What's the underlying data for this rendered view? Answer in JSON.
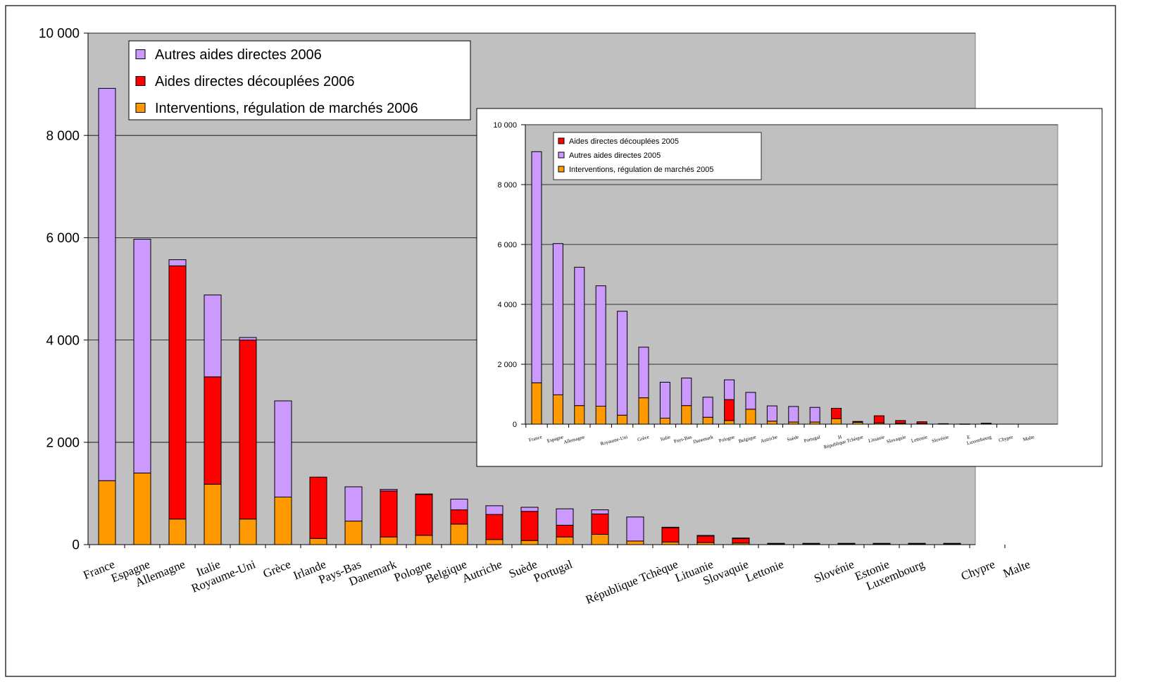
{
  "colors": {
    "autres": "#cc99ff",
    "decouplees": "#ff0000",
    "interventions": "#ff9900",
    "plot_bg": "#c0c0c0",
    "frame": "#000000"
  },
  "chart_data": [
    {
      "type": "bar",
      "stacked": true,
      "title": "",
      "xlabel": "",
      "ylabel": "",
      "ylim": [
        0,
        10000
      ],
      "yticks": [
        "0",
        "2 000",
        "4 000",
        "6 000",
        "8 000",
        "10 000"
      ],
      "grid": true,
      "legend_position": "top-left",
      "categories": [
        "France",
        "Espagne",
        "Allemagne",
        "Italie",
        "Royaume-Uni",
        "Grèce",
        "Irlande",
        "Pays-Bas",
        "Danemark",
        "Pologne",
        "Belgique",
        "Autriche",
        "Suède",
        "Portugal",
        "",
        "",
        "République Tchèque",
        "Lituanie",
        "Slovaquie",
        "Lettonie",
        "",
        "Slovénie",
        "Estonie",
        "Luxembourg",
        "",
        "Chypre",
        "Malte"
      ],
      "category_labels": [
        "France",
        "Espagne",
        "Allemagne",
        "Italie",
        "Royaume-Uni",
        "Grèce",
        "Irlande",
        "Pays-Bas",
        "Danemark",
        "Pologne",
        "Belgique",
        "Autriche",
        "Suède",
        "Portugal",
        "",
        "",
        "République Tchèque",
        "Lituanie",
        "Slovaquie",
        "Lettonie",
        "",
        "Slovénie",
        "Estonie",
        "Luxembourg",
        "",
        "Chypre",
        "Malte"
      ],
      "series": [
        {
          "name": "Interventions, régulation de marchés 2006",
          "color_key": "interventions",
          "values": [
            1250,
            1400,
            500,
            1180,
            500,
            930,
            120,
            460,
            150,
            180,
            400,
            100,
            80,
            150,
            200,
            70,
            50,
            40,
            30,
            10,
            10,
            10,
            10,
            10,
            10,
            0,
            0
          ]
        },
        {
          "name": "Aides directes découplées 2006",
          "color_key": "decouplees",
          "values": [
            0,
            0,
            4950,
            2100,
            3500,
            0,
            1200,
            0,
            900,
            800,
            280,
            490,
            570,
            230,
            400,
            0,
            280,
            130,
            90,
            10,
            10,
            10,
            10,
            10,
            10,
            0,
            0
          ]
        },
        {
          "name": "Autres aides directes 2006",
          "color_key": "autres",
          "values": [
            7670,
            4570,
            120,
            1600,
            50,
            1880,
            0,
            670,
            30,
            10,
            210,
            170,
            80,
            320,
            80,
            470,
            10,
            10,
            10,
            5,
            5,
            5,
            5,
            5,
            5,
            0,
            0
          ]
        }
      ],
      "legend": [
        {
          "label": "Autres aides directes 2006",
          "color_key": "autres"
        },
        {
          "label": "Aides directes découplées 2006",
          "color_key": "decouplees"
        },
        {
          "label": "Interventions, régulation de marchés 2006",
          "color_key": "interventions"
        }
      ]
    },
    {
      "type": "bar",
      "stacked": true,
      "title": "",
      "xlabel": "",
      "ylabel": "",
      "ylim": [
        0,
        10000
      ],
      "yticks": [
        "0",
        "2 000",
        "4 000",
        "6 000",
        "8 000",
        "10 000"
      ],
      "grid": true,
      "legend_position": "top-left",
      "categories": [
        "France",
        "Espagne",
        "Allemagne",
        "",
        "Royaume-Uni",
        "Grèce",
        "Italie",
        "Pays-Bas",
        "Danemark",
        "Pologne",
        "Belgique",
        "Autriche",
        "Suède",
        "Portugal",
        "H",
        "République Tchèque",
        "Lituanie",
        "Slovaquie",
        "Lettonie",
        "Slovénie",
        "E",
        "Luxembourg",
        "Chypre",
        "Malte"
      ],
      "category_labels": [
        "France",
        "Espagne",
        "Allemagne",
        "",
        "Royaume-Uni",
        "Grèce",
        "Italie",
        "Pays-Bas",
        "Danemark",
        "Pologne",
        "Belgique",
        "Autriche",
        "Suède",
        "Portugal",
        "H",
        "République Tchèque",
        "Lituanie",
        "Slovaquie",
        "Lettonie",
        "Slovénie",
        "E",
        "Luxembourg",
        "Chypre",
        "Malte"
      ],
      "series": [
        {
          "name": "Interventions, régulation de marchés 2005",
          "color_key": "interventions",
          "values": [
            1380,
            980,
            620,
            600,
            300,
            880,
            200,
            620,
            230,
            120,
            500,
            100,
            70,
            70,
            180,
            60,
            40,
            30,
            20,
            10,
            0,
            10,
            0,
            0
          ]
        },
        {
          "name": "Aides directes découplées 2005",
          "color_key": "decouplees",
          "values": [
            0,
            0,
            0,
            0,
            0,
            0,
            0,
            0,
            0,
            700,
            0,
            0,
            0,
            0,
            350,
            20,
            240,
            90,
            60,
            0,
            0,
            0,
            0,
            0
          ]
        },
        {
          "name": "Autres aides directes 2005",
          "color_key": "autres",
          "values": [
            7720,
            5050,
            4620,
            4020,
            3470,
            1690,
            1200,
            920,
            670,
            660,
            560,
            510,
            520,
            490,
            0,
            10,
            0,
            0,
            0,
            5,
            5,
            20,
            0,
            0
          ]
        }
      ],
      "legend": [
        {
          "label": "Aides directes découplées 2005",
          "color_key": "decouplees"
        },
        {
          "label": "Autres aides directes 2005",
          "color_key": "autres"
        },
        {
          "label": "Interventions, régulation de marchés 2005",
          "color_key": "interventions"
        }
      ]
    }
  ]
}
